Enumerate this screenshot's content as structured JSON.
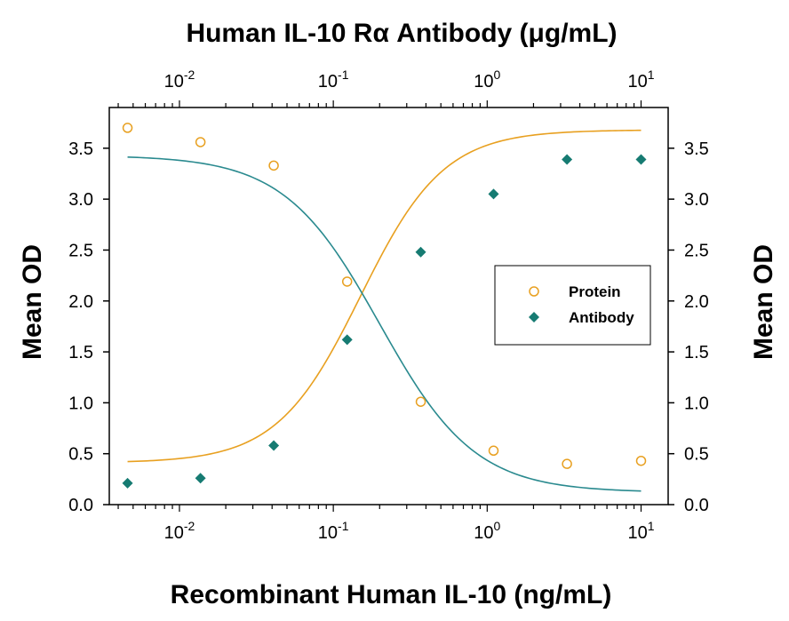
{
  "chart_data": {
    "type": "scatter",
    "top_title": "Human IL-10 Rα Antibody (μg/mL)",
    "xlabel": "Recombinant Human IL-10  (ng/mL)",
    "ylabel_left": "Mean OD",
    "ylabel_right": "Mean OD",
    "x_scale": "log",
    "xlim": [
      0.0035,
      15
    ],
    "ylim": [
      0,
      3.9
    ],
    "x_ticks": [
      {
        "value": 0.01,
        "base": "10",
        "exp": "-2"
      },
      {
        "value": 0.1,
        "base": "10",
        "exp": "-1"
      },
      {
        "value": 1,
        "base": "10",
        "exp": "0"
      },
      {
        "value": 10,
        "base": "10",
        "exp": "1"
      }
    ],
    "y_ticks": [
      "0.0",
      "0.5",
      "1.0",
      "1.5",
      "2.0",
      "2.5",
      "3.0",
      "3.5"
    ],
    "grid": false,
    "legend_position": "center-right",
    "series": [
      {
        "name": "Protein",
        "marker": "open-circle",
        "color": "#E8A020",
        "line_color": "#E8A020",
        "x": [
          0.0046,
          0.0137,
          0.041,
          0.123,
          0.37,
          1.1,
          3.3,
          10
        ],
        "y": [
          3.7,
          3.56,
          3.33,
          2.19,
          1.01,
          0.53,
          0.4,
          0.43
        ],
        "fit": {
          "top": 3.68,
          "bottom": 0.41,
          "ec50": 0.15,
          "hill": -1.6
        }
      },
      {
        "name": "Antibody",
        "marker": "filled-diamond",
        "color": "#167B72",
        "line_color": "#2A8A8F",
        "x": [
          0.0046,
          0.0137,
          0.041,
          0.123,
          0.37,
          1.1,
          3.3,
          10
        ],
        "y": [
          0.21,
          0.26,
          0.58,
          1.62,
          2.48,
          3.05,
          3.39,
          3.39
        ],
        "fit": {
          "top": 3.43,
          "bottom": 0.12,
          "ec50": 0.2,
          "hill": 1.4
        }
      }
    ]
  }
}
